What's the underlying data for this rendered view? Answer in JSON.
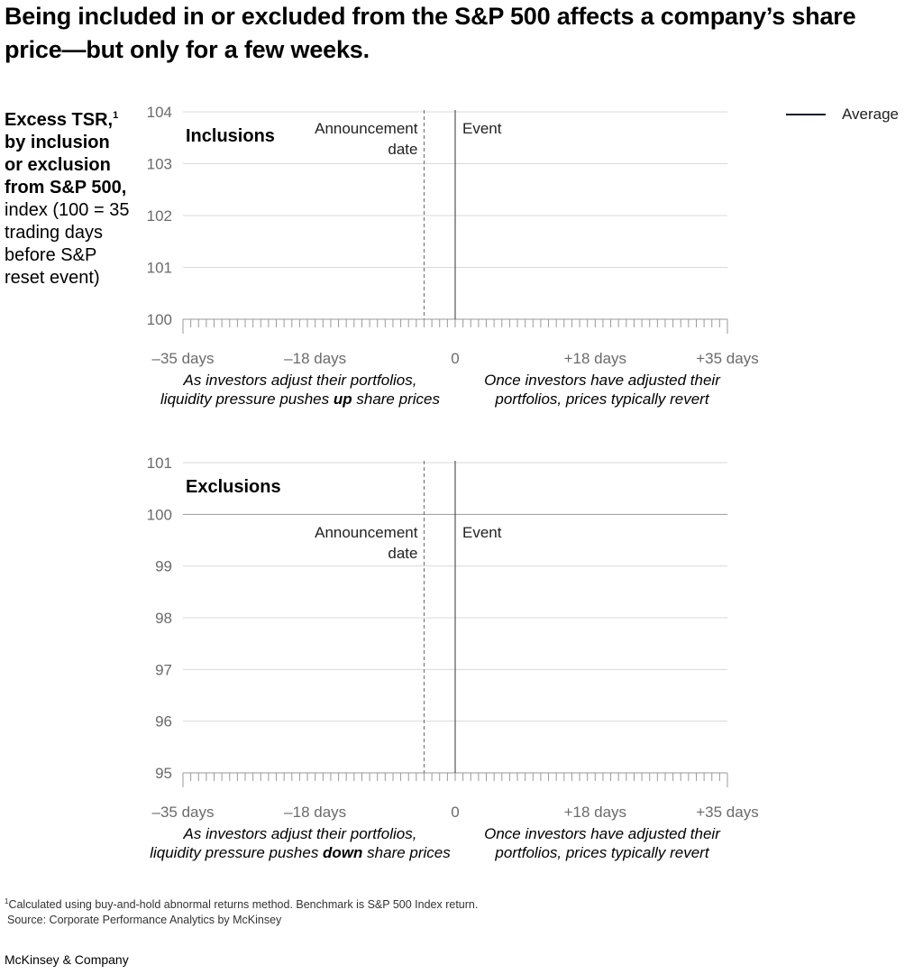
{
  "title": "Being included in or excluded from the S&P 500 affects a company’s share price—but only for a few weeks.",
  "y_axis_label": {
    "bold_part": "Excess TSR,",
    "footnote_marker": "1",
    "bold_part_2": "by inclusion or exclusion from S&P 500,",
    "regular_part": "index (100 = 35 trading days before S&P reset event)"
  },
  "legend": {
    "label": "Average",
    "color": "#051c2c"
  },
  "footnote": {
    "marker": "1",
    "text": "Calculated using buy-and-hold abnormal returns method. Benchmark is S&P 500 Index return.",
    "source": "Source: Corporate Performance Analytics by McKinsey"
  },
  "brand": "McKinsey & Company",
  "chart_data": [
    {
      "type": "line",
      "title": "Inclusions",
      "x_ticks": [
        -35,
        -18,
        0,
        18,
        35
      ],
      "x_tick_labels": [
        "–35 days",
        "–18 days",
        "0",
        "+18 days",
        "+35 days"
      ],
      "xlim": [
        -35,
        35
      ],
      "y_ticks": [
        100,
        101,
        102,
        103,
        104
      ],
      "ylim": [
        100,
        104
      ],
      "grid": true,
      "baseline": 100,
      "reference_lines": [
        {
          "x": -4,
          "label_line1": "Announcement",
          "label_line2": "date",
          "style": "dashed"
        },
        {
          "x": 0,
          "label_line1": "Event",
          "label_line2": "",
          "style": "solid"
        }
      ],
      "series": [
        {
          "name": "Average",
          "x": [],
          "y": []
        }
      ],
      "annotations": [
        {
          "line1": "As investors adjust their portfolios,",
          "line2_pre": "liquidity pressure pushes ",
          "line2_bold": "up",
          "line2_post": " share prices"
        },
        {
          "line1": "Once investors have adjusted their",
          "line2_pre": "portfolios, prices typically revert",
          "line2_bold": "",
          "line2_post": ""
        }
      ]
    },
    {
      "type": "line",
      "title": "Exclusions",
      "x_ticks": [
        -35,
        -18,
        0,
        18,
        35
      ],
      "x_tick_labels": [
        "–35 days",
        "–18 days",
        "0",
        "+18 days",
        "+35 days"
      ],
      "xlim": [
        -35,
        35
      ],
      "y_ticks": [
        95,
        96,
        97,
        98,
        99,
        100,
        101
      ],
      "ylim": [
        95,
        101
      ],
      "grid": true,
      "baseline": 100,
      "reference_lines": [
        {
          "x": -4,
          "label_line1": "Announcement",
          "label_line2": "date",
          "style": "dashed"
        },
        {
          "x": 0,
          "label_line1": "Event",
          "label_line2": "",
          "style": "solid"
        }
      ],
      "series": [
        {
          "name": "Average",
          "x": [],
          "y": []
        }
      ],
      "annotations": [
        {
          "line1": "As investors adjust their portfolios,",
          "line2_pre": "liquidity pressure pushes ",
          "line2_bold": "down",
          "line2_post": " share prices"
        },
        {
          "line1": "Once investors have adjusted their",
          "line2_pre": "portfolios, prices typically revert",
          "line2_bold": "",
          "line2_post": ""
        }
      ]
    }
  ]
}
